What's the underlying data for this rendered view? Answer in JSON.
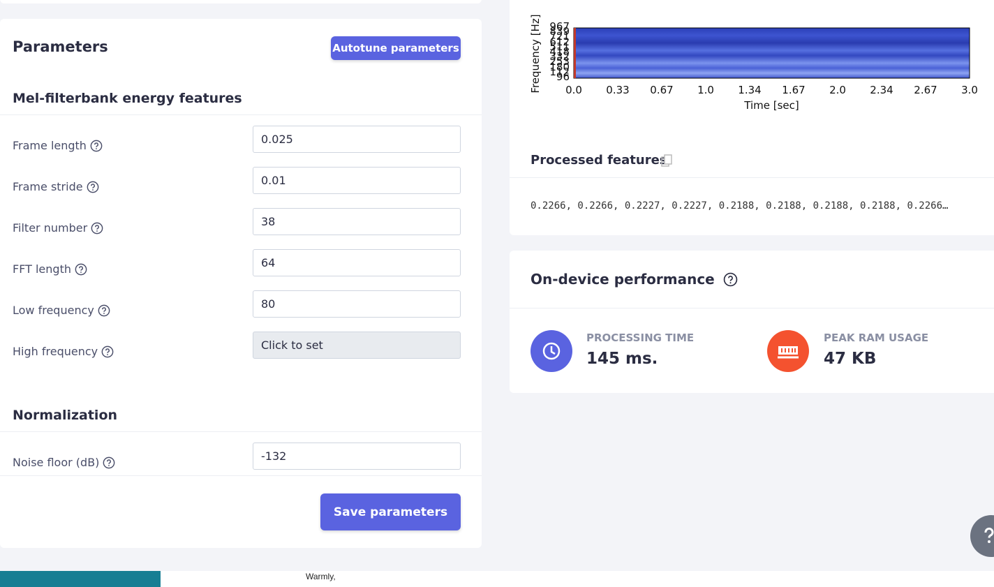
{
  "left_panel": {
    "title": "Parameters",
    "autotune_button": "Autotune parameters",
    "sections": [
      {
        "title": "Mel-filterbank energy features",
        "fields": [
          {
            "label": "Frame length",
            "value": "0.025"
          },
          {
            "label": "Frame stride",
            "value": "0.01"
          },
          {
            "label": "Filter number",
            "value": "38"
          },
          {
            "label": "FFT length",
            "value": "64"
          },
          {
            "label": "Low frequency",
            "value": "80"
          },
          {
            "label": "High frequency",
            "value": "Click to set"
          }
        ]
      },
      {
        "title": "Normalization",
        "fields": [
          {
            "label": "Noise floor (dB)",
            "value": "-132"
          }
        ]
      }
    ],
    "save_button": "Save parameters"
  },
  "spectrogram": {
    "y_label": "Frequency [Hz]",
    "y_ticks": [
      "967",
      "839",
      "721",
      "612",
      "511",
      "418",
      "332",
      "253",
      "180",
      "112",
      "96"
    ],
    "x_label": "Time [sec]",
    "x_ticks": [
      "0.0",
      "0.33",
      "0.67",
      "1.0",
      "1.34",
      "1.67",
      "2.0",
      "2.34",
      "2.67",
      "3.0"
    ]
  },
  "processed_features": {
    "title": "Processed features",
    "text": "0.2266, 0.2266, 0.2227, 0.2227, 0.2188, 0.2188, 0.2188, 0.2188, 0.2266…"
  },
  "performance": {
    "title": "On-device performance",
    "metrics": [
      {
        "label": "PROCESSING TIME",
        "value": "145 ms."
      },
      {
        "label": "PEAK RAM USAGE",
        "value": "47 KB"
      }
    ]
  },
  "taskbar": {
    "text": "Warmly,"
  }
}
